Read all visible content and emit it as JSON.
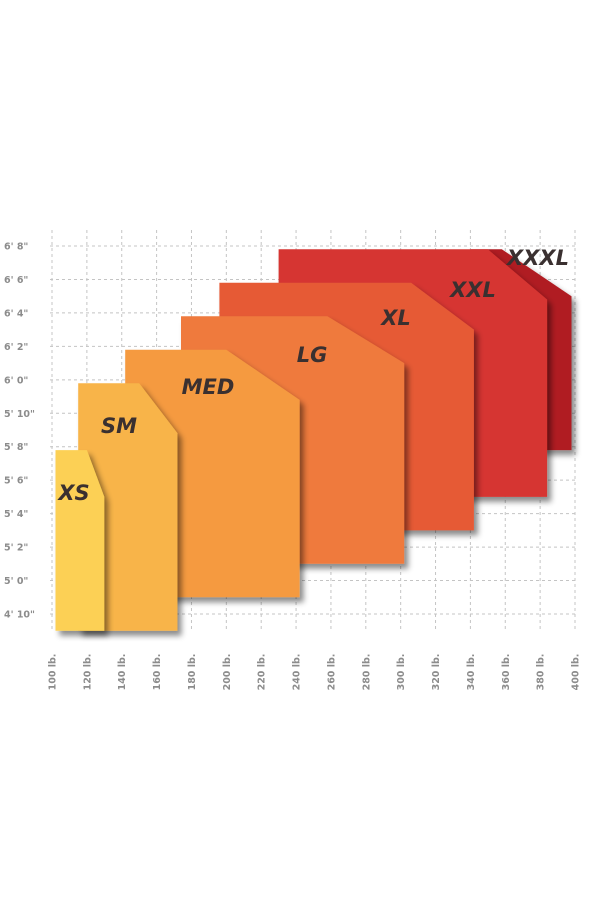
{
  "chart_data": {
    "type": "area",
    "title": "",
    "xlabel": "",
    "ylabel": "",
    "grid": true,
    "x_ticks": [
      {
        "value": 100,
        "label": "100 lb."
      },
      {
        "value": 120,
        "label": "120 lb."
      },
      {
        "value": 140,
        "label": "140 lb."
      },
      {
        "value": 160,
        "label": "160 lb."
      },
      {
        "value": 180,
        "label": "180 lb."
      },
      {
        "value": 200,
        "label": "200 lb."
      },
      {
        "value": 220,
        "label": "220 lb."
      },
      {
        "value": 240,
        "label": "240 lb."
      },
      {
        "value": 260,
        "label": "260 lb."
      },
      {
        "value": 280,
        "label": "280 lb."
      },
      {
        "value": 300,
        "label": "300 lb."
      },
      {
        "value": 320,
        "label": "320 lb."
      },
      {
        "value": 340,
        "label": "340 lb."
      },
      {
        "value": 360,
        "label": "360 lb."
      },
      {
        "value": 380,
        "label": "380 lb."
      },
      {
        "value": 400,
        "label": "400 lb."
      }
    ],
    "y_ticks": [
      {
        "value": 58,
        "label": "4' 10\""
      },
      {
        "value": 60,
        "label": "5' 0\""
      },
      {
        "value": 62,
        "label": "5' 2\""
      },
      {
        "value": 64,
        "label": "5' 4\""
      },
      {
        "value": 66,
        "label": "5' 6\""
      },
      {
        "value": 68,
        "label": "5' 8\""
      },
      {
        "value": 70,
        "label": "5' 10\""
      },
      {
        "value": 72,
        "label": "6' 0\""
      },
      {
        "value": 74,
        "label": "6' 2\""
      },
      {
        "value": 76,
        "label": "6' 4\""
      },
      {
        "value": 78,
        "label": "6' 6\""
      },
      {
        "value": 80,
        "label": "6' 8\""
      }
    ],
    "xlim": [
      100,
      400
    ],
    "ylim": [
      57,
      80
    ],
    "sizes": [
      {
        "name": "XS",
        "color": "#fcd055",
        "weight_min": 102,
        "weight_max": 130,
        "height_min": 57,
        "height_max": 67.8,
        "corner": [
          [
            120,
            67.8
          ],
          [
            130,
            65
          ]
        ]
      },
      {
        "name": "SM",
        "color": "#f8b448",
        "weight_min": 115,
        "weight_max": 172,
        "height_min": 57,
        "height_max": 71.8,
        "corner": [
          [
            150,
            71.8
          ],
          [
            172,
            68.8
          ]
        ]
      },
      {
        "name": "MED",
        "color": "#f59a40",
        "weight_min": 142,
        "weight_max": 242,
        "height_min": 59,
        "height_max": 73.8,
        "corner": [
          [
            200,
            73.8
          ],
          [
            242,
            70.8
          ]
        ]
      },
      {
        "name": "LG",
        "color": "#ef7a3c",
        "weight_min": 174,
        "weight_max": 302,
        "height_min": 61,
        "height_max": 75.8,
        "corner": [
          [
            258,
            75.8
          ],
          [
            302,
            73
          ]
        ]
      },
      {
        "name": "XL",
        "color": "#e65a36",
        "weight_min": 196,
        "weight_max": 342,
        "height_min": 63,
        "height_max": 77.8,
        "corner": [
          [
            306,
            77.8
          ],
          [
            342,
            75
          ]
        ]
      },
      {
        "name": "XXL",
        "color": "#d63530",
        "weight_min": 230,
        "weight_max": 384,
        "height_min": 65,
        "height_max": 79.8,
        "corner": [
          [
            350,
            79.8
          ],
          [
            384,
            76.8
          ]
        ]
      },
      {
        "name": "XXXL",
        "color": "#b01c24",
        "weight_min": 340,
        "weight_max": 398,
        "height_min": 67.8,
        "height_max": 79.8,
        "corner": [
          [
            358,
            79.8
          ],
          [
            398,
            77
          ]
        ]
      }
    ]
  }
}
